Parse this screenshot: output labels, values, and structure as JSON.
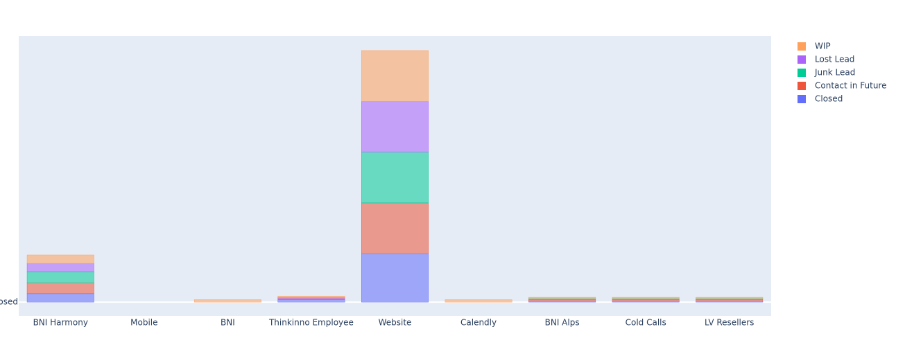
{
  "chart_data": {
    "type": "bar",
    "stacked": true,
    "categories": [
      "BNI Harmony",
      "Mobile",
      "BNI",
      "Thinkinno Employee",
      "Website",
      "Calendly",
      "BNI Alps",
      "Cold Calls",
      "LV Resellers"
    ],
    "series": [
      {
        "name": "Closed",
        "color": "#636efa",
        "values": [
          3.5,
          0,
          0,
          1,
          20,
          0,
          0.5,
          0.5,
          0.5
        ]
      },
      {
        "name": "Contact in Future",
        "color": "#ef553b",
        "values": [
          4.5,
          0,
          0,
          0.5,
          21,
          0,
          0.5,
          0.5,
          0.5
        ]
      },
      {
        "name": "Junk Lead",
        "color": "#00cc96",
        "values": [
          4.5,
          0,
          0,
          0,
          21,
          0,
          0.5,
          0.5,
          0.5
        ]
      },
      {
        "name": "Lost Lead",
        "color": "#ab63fa",
        "values": [
          3.5,
          0,
          0,
          0.5,
          21,
          0,
          0,
          0,
          0
        ]
      },
      {
        "name": "WIP",
        "color": "#ffa15a",
        "values": [
          3.5,
          0,
          1,
          0.5,
          21,
          1,
          0.5,
          0.5,
          0.5
        ]
      }
    ],
    "ylim": [
      -5.7,
      110
    ],
    "yticks": [
      {
        "value": 0,
        "label": "Closed"
      }
    ],
    "legend": "right"
  }
}
